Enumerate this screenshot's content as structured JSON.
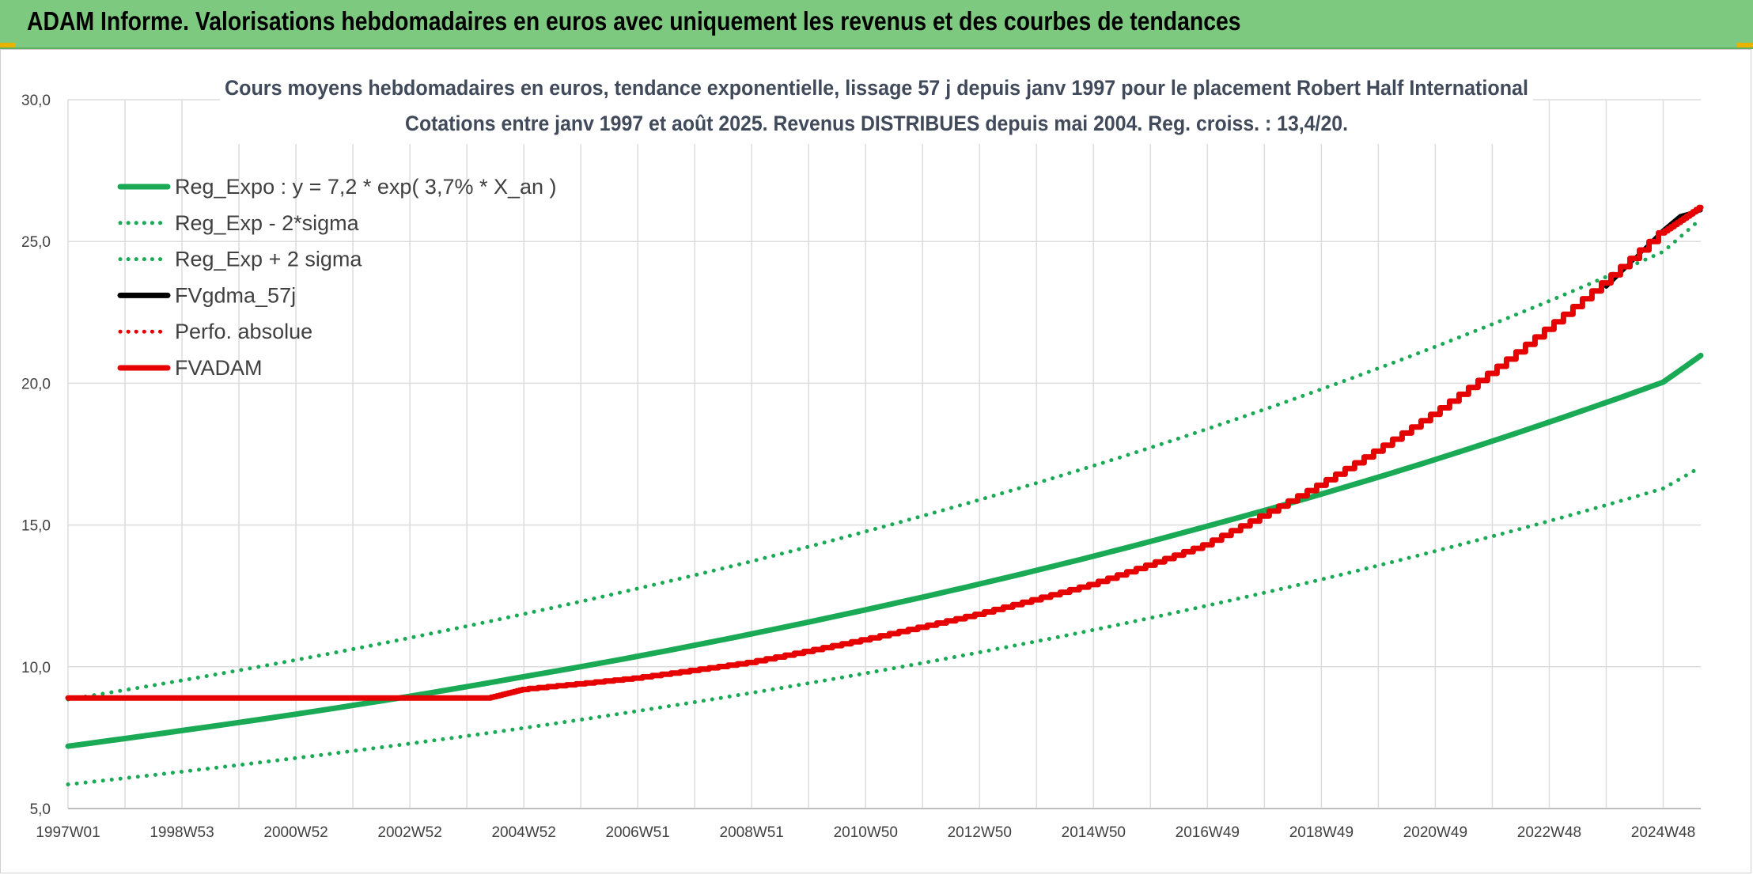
{
  "header": {
    "title": "ADAM Informe. Valorisations hebdomadaires en euros avec uniquement les revenus et des courbes de tendances"
  },
  "colors": {
    "header_bg": "#7dc97f",
    "accent": "#e8b400",
    "trend": "#1aaa55",
    "price": "#000000",
    "adam": "#e60000",
    "grid": "#dcdcdc"
  },
  "chart_data": {
    "type": "line",
    "title": "Cours moyens hebdomadaires en euros, tendance exponentielle, lissage 57 j depuis janv 1997 pour le placement Robert Half International",
    "subtitle": "Cotations entre janv 1997 et août 2025. Revenus DISTRIBUES depuis mai 2004. Reg. croiss. : 13,4/20.",
    "xlabel": "",
    "ylabel": "",
    "xlim": [
      1997.0,
      2025.66
    ],
    "ylim": [
      5,
      30
    ],
    "y_ticks": [
      "5,0",
      "10,0",
      "15,0",
      "20,0",
      "25,0",
      "30,0"
    ],
    "x_ticks": [
      "1997W01",
      "1998W53",
      "2000W52",
      "2002W52",
      "2004W52",
      "2006W51",
      "2008W51",
      "2010W50",
      "2012W50",
      "2014W50",
      "2016W49",
      "2018W49",
      "2020W49",
      "2022W48",
      "2024W48"
    ],
    "x_tick_values": [
      1997.0,
      1999.0,
      2001.0,
      2003.0,
      2005.0,
      2007.0,
      2009.0,
      2011.0,
      2013.0,
      2015.0,
      2017.0,
      2019.0,
      2021.0,
      2023.0,
      2025.0
    ],
    "grid": true,
    "legend_position": "top-left",
    "series": [
      {
        "name": "Reg_Expo : y = 7,2 * exp( 3,7% *  X_an )",
        "style": "solid",
        "color": "#1aaa55",
        "x": [
          1997,
          1999,
          2001,
          2003,
          2005,
          2007,
          2009,
          2011,
          2013,
          2015,
          2017,
          2019,
          2021,
          2023,
          2025,
          2025.66
        ],
        "values": [
          7.2,
          7.75,
          8.33,
          8.96,
          9.65,
          10.37,
          11.16,
          12.01,
          12.92,
          13.9,
          14.96,
          16.09,
          17.31,
          18.63,
          20.04,
          20.98
        ]
      },
      {
        "name": "Reg_Exp - 2*sigma",
        "style": "dotted",
        "color": "#1aaa55",
        "x": [
          1997,
          1999,
          2001,
          2003,
          2005,
          2007,
          2009,
          2011,
          2013,
          2015,
          2017,
          2019,
          2021,
          2023,
          2025,
          2025.66
        ],
        "values": [
          5.85,
          6.3,
          6.78,
          7.29,
          7.84,
          8.44,
          9.08,
          9.77,
          10.51,
          11.3,
          12.16,
          13.08,
          14.08,
          15.14,
          16.29,
          17.05
        ]
      },
      {
        "name": "Reg_Exp + 2 sigma",
        "style": "dotted",
        "color": "#1aaa55",
        "x": [
          1997,
          1999,
          2001,
          2003,
          2005,
          2007,
          2009,
          2011,
          2013,
          2015,
          2017,
          2019,
          2021,
          2023,
          2025,
          2025.66
        ],
        "values": [
          8.85,
          9.52,
          10.24,
          11.02,
          11.86,
          12.76,
          13.72,
          14.77,
          15.89,
          17.09,
          18.39,
          19.79,
          21.29,
          22.9,
          24.64,
          25.8
        ]
      },
      {
        "name": "FVgdma_57j",
        "style": "solid",
        "color": "#000000",
        "x": [
          2024.0,
          2024.5,
          2025.0,
          2025.3,
          2025.66
        ],
        "values": [
          23.4,
          24.4,
          25.4,
          25.9,
          26.1
        ]
      },
      {
        "name": "Perfo. absolue",
        "style": "dotted",
        "color": "#e60000",
        "x": [
          1997,
          2004.4
        ],
        "values": [
          8.9,
          8.9
        ]
      },
      {
        "name": "FVADAM",
        "style": "solid",
        "color": "#e60000",
        "x": [
          1997,
          1999,
          2001,
          2003,
          2004.4,
          2005,
          2007,
          2009,
          2011,
          2013,
          2015,
          2017,
          2019,
          2021,
          2023,
          2025,
          2025.66
        ],
        "values": [
          8.9,
          8.9,
          8.9,
          8.9,
          8.9,
          9.2,
          9.6,
          10.15,
          10.95,
          11.85,
          12.9,
          14.3,
          16.4,
          18.9,
          21.9,
          25.3,
          26.2
        ]
      }
    ]
  }
}
